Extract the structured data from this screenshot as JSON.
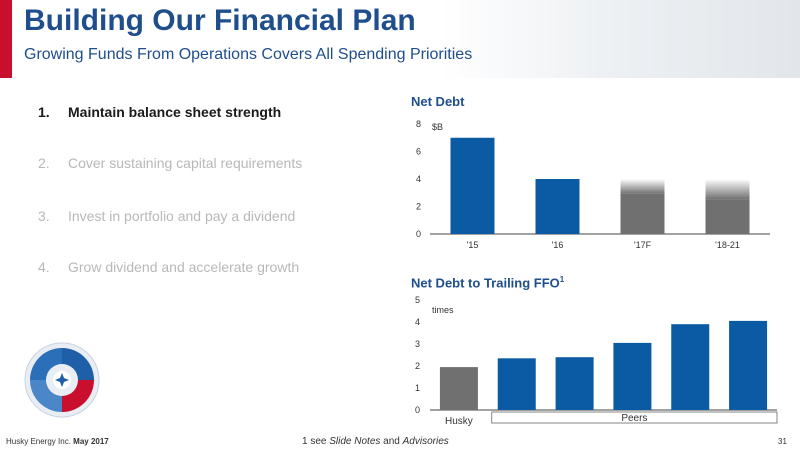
{
  "header": {
    "title": "Building Our Financial Plan",
    "subtitle": "Growing Funds From Operations Covers All Spending Priorities"
  },
  "priorities": [
    {
      "num": "1.",
      "text": "Maintain balance sheet strength",
      "active": true
    },
    {
      "num": "2.",
      "text": "Cover sustaining capital requirements",
      "active": false
    },
    {
      "num": "3.",
      "text": "Invest in portfolio and pay a dividend",
      "active": false
    },
    {
      "num": "4.",
      "text": "Grow dividend and accelerate growth",
      "active": false
    }
  ],
  "colors": {
    "brand_blue": "#0b5aa4",
    "accent_red": "#c8102e",
    "forecast_gray": "#707070",
    "title_blue": "#1f4e8c"
  },
  "logo": {
    "icon": "husky-swirl-logo"
  },
  "chart_data": [
    {
      "type": "bar",
      "title": "Net Debt",
      "unit_label": "$B",
      "categories": [
        "'15",
        "'16",
        "'17F",
        "'18-21"
      ],
      "values": [
        7.0,
        4.0,
        4.0,
        4.0
      ],
      "forecast": [
        false,
        false,
        true,
        true
      ],
      "ylim": [
        0,
        8
      ],
      "yticks": [
        0,
        2,
        4,
        6,
        8
      ],
      "grid": false
    },
    {
      "type": "bar",
      "title": "Net Debt to Trailing FFO",
      "title_superscript": "1",
      "unit_label": "times",
      "categories": [
        "",
        "",
        "",
        "",
        "",
        ""
      ],
      "values": [
        1.95,
        2.35,
        2.4,
        3.05,
        3.9,
        4.05
      ],
      "bar_colors": [
        "#707070",
        "#0b5aa4",
        "#0b5aa4",
        "#0b5aa4",
        "#0b5aa4",
        "#0b5aa4"
      ],
      "group_labels": {
        "single": "Husky",
        "group": "Peers"
      },
      "ylim": [
        0,
        5
      ],
      "yticks": [
        0,
        1,
        2,
        3,
        4,
        5
      ],
      "grid": false
    }
  ],
  "footer": {
    "company": "Husky Energy Inc.",
    "date": "May 2017",
    "note_prefix": "1 see ",
    "note_slide_notes": "Slide Notes",
    "note_and": " and ",
    "note_advisories": "Advisories",
    "page": "31"
  }
}
